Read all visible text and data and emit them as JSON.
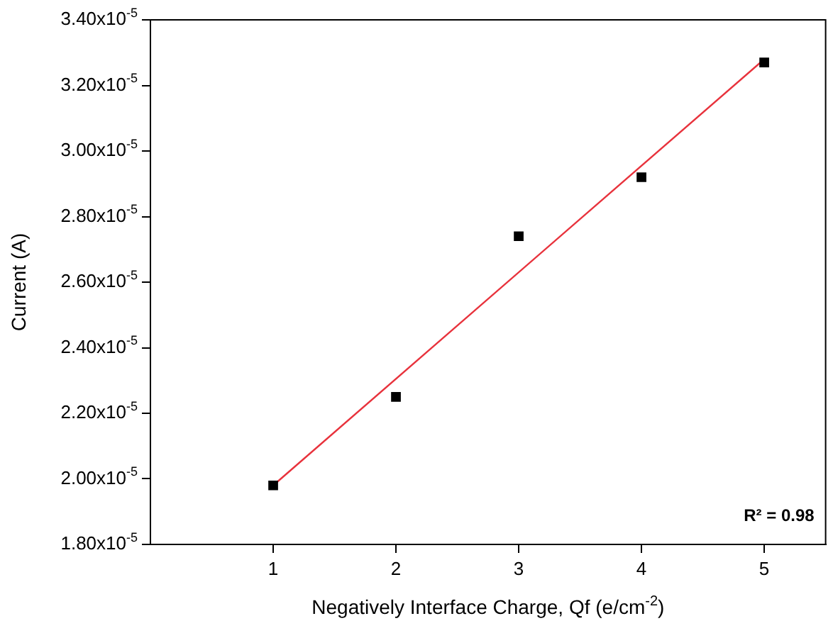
{
  "chart_data": {
    "type": "scatter",
    "xlabel": "Negatively Interface Charge, Qf (e/cm$^{-2}$)",
    "ylabel": "Current (A)",
    "x": [
      1,
      2,
      3,
      4,
      5
    ],
    "series": [
      {
        "color": "#000000",
        "marker": "square",
        "values": [
          1.98e-05,
          2.25e-05,
          2.74e-05,
          2.92e-05,
          3.27e-05
        ]
      },
      {
        "type": "line",
        "color": "#e8323c",
        "marker": "none",
        "x": [
          1,
          5
        ],
        "values": [
          1.98e-05,
          3.28e-05
        ]
      }
    ],
    "xlim": [
      0,
      5.5
    ],
    "xticks": [
      1,
      2,
      3,
      4,
      5
    ],
    "ylim": [
      1.8e-05,
      3.4e-05
    ],
    "yticks": [
      {
        "value": 1.8e-05,
        "label": "1.80x10$^{-5}$"
      },
      {
        "value": 2e-05,
        "label": "2.00x10$^{-5}$"
      },
      {
        "value": 2.2e-05,
        "label": "2.20x10$^{-5}$"
      },
      {
        "value": 2.4e-05,
        "label": "2.40x10$^{-5}$"
      },
      {
        "value": 2.6e-05,
        "label": "2.60x10$^{-5}$"
      },
      {
        "value": 2.8e-05,
        "label": "2.80x10$^{-5}$"
      },
      {
        "value": 3e-05,
        "label": "3.00x10$^{-5}$"
      },
      {
        "value": 3.2e-05,
        "label": "3.20x10$^{-5}$"
      },
      {
        "value": 3.4e-05,
        "label": "3.40x10$^{-5}$"
      }
    ],
    "grid": false,
    "legend": false,
    "annotations": [
      "R² = 0.98"
    ]
  }
}
